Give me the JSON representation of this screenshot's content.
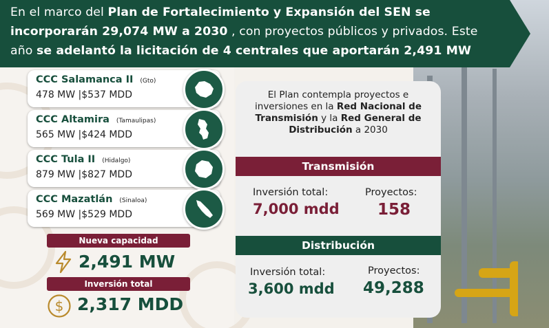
{
  "header": {
    "line1_pre": "En el marco del ",
    "line1_bold": "Plan de Fortalecimiento y Expansión del SEN se",
    "line2_bold": "incorporarán 29,074 MW a 2030",
    "line2_post": "   , con proyectos públicos y privados. Este",
    "line3_pre": "año ",
    "line3_bold": "se adelantó la licitación de 4 centrales que aportarán 2,491 MW"
  },
  "plants": [
    {
      "name": "CCC Salamanca II",
      "state": "(Gto)",
      "capacity": "478 MW |$537 MDD",
      "icon": "guanajuato-map-icon"
    },
    {
      "name": "CCC Altamira",
      "state": "(Tamaulipas)",
      "capacity": "565 MW |$424 MDD",
      "icon": "tamaulipas-map-icon"
    },
    {
      "name": "CCC Tula II",
      "state": "(Hidalgo)",
      "capacity": "879 MW |$827 MDD",
      "icon": "hidalgo-map-icon"
    },
    {
      "name": "CCC Mazatlán",
      "state": "(Sinaloa)",
      "capacity": "569 MW |$529 MDD",
      "icon": "sinaloa-map-icon"
    }
  ],
  "totals": {
    "capacity_label": "Nueva capacidad",
    "capacity_value": "2,491 MW",
    "capacity_icon": "lightning-icon",
    "investment_label": "Inversión total",
    "investment_value": "2,317 MDD",
    "investment_icon": "dollar-coin-icon"
  },
  "panel": {
    "intro_1": "El Plan contempla proyectos e inversiones en la ",
    "intro_b1": "Red Nacional de Transmisión",
    "intro_2": "  y la ",
    "intro_b2": "Red General de Distribución",
    "intro_3": "   a 2030",
    "transmision": {
      "title": "Transmisión",
      "inv_label": "Inversión total:",
      "inv_value": "7,000 mdd",
      "proj_label": "Proyectos:",
      "proj_value": "158"
    },
    "distribucion": {
      "title": "Distribución",
      "inv_label": "Inversión total:",
      "inv_value": "3,600 mdd",
      "proj_label": "Proyectos:",
      "proj_value": "49,288"
    }
  },
  "colors": {
    "green": "#174f3c",
    "maroon": "#7a1f37",
    "gold": "#b98a2c"
  }
}
